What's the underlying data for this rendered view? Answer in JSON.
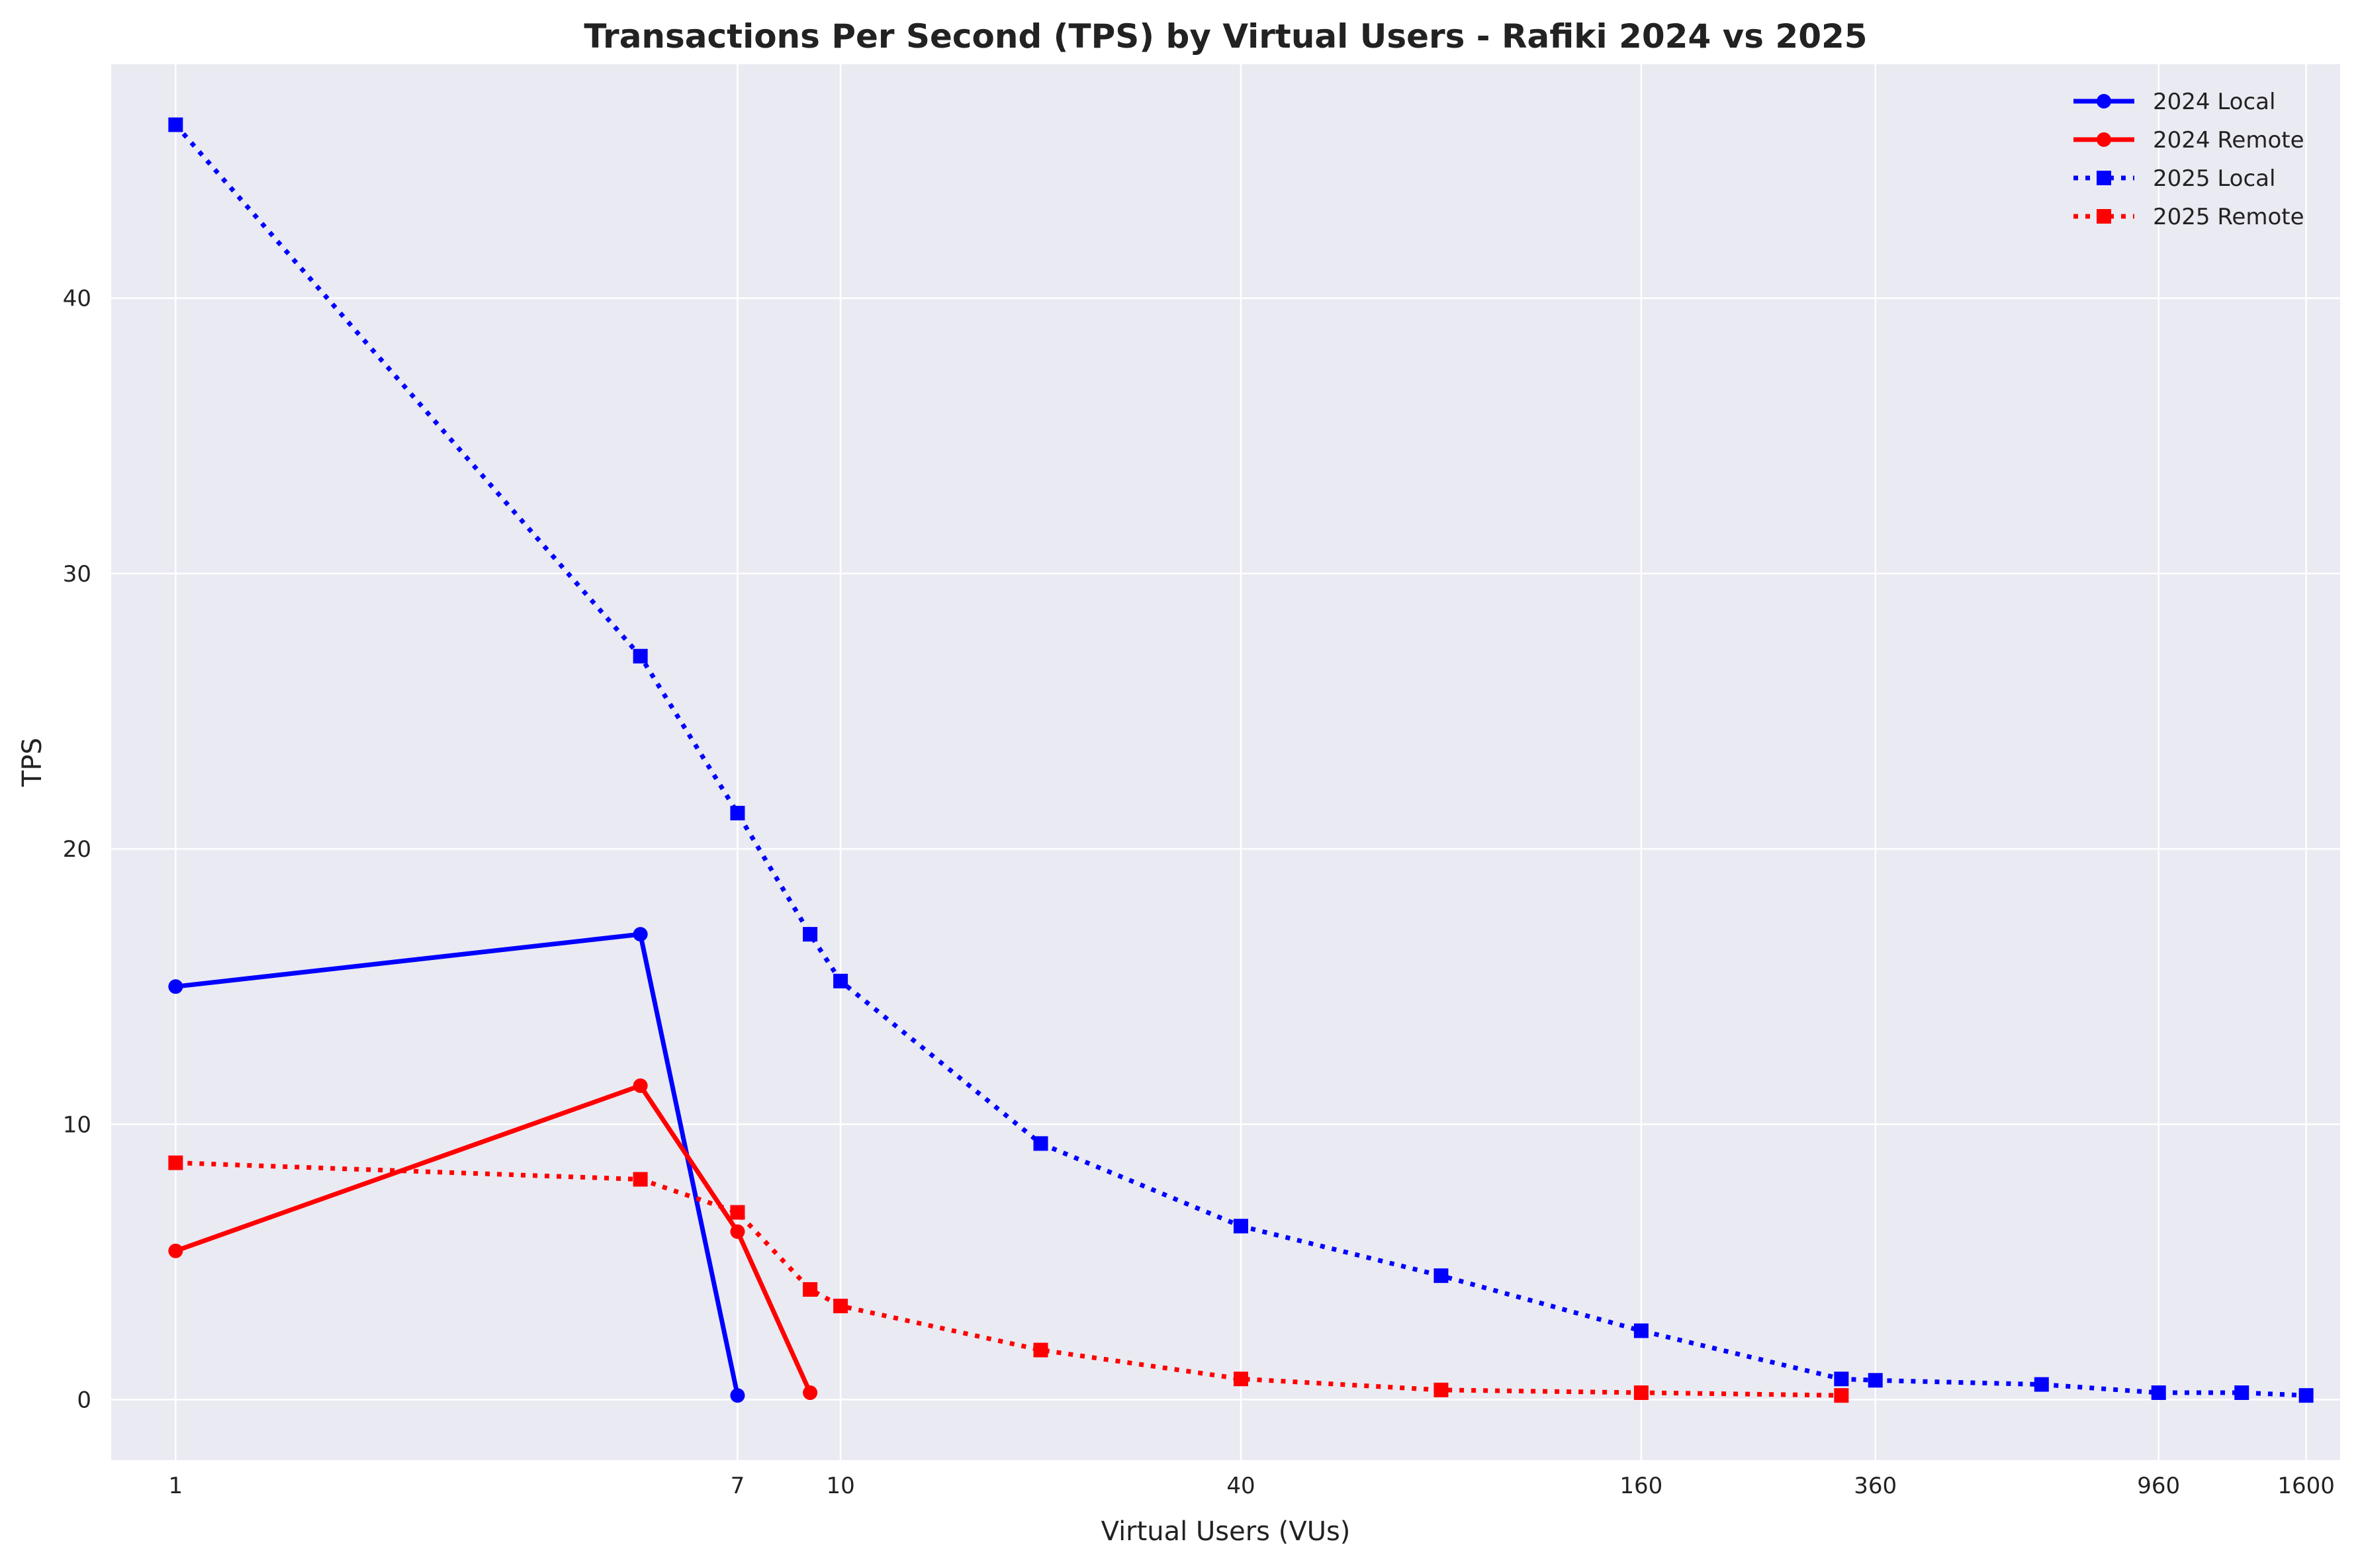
{
  "chart_data": {
    "type": "line",
    "title": "Transactions Per Second (TPS) by Virtual Users - Rafiki 2024 vs 2025",
    "xlabel": "Virtual Users (VUs)",
    "ylabel": "TPS",
    "x_scale": "log",
    "xlim": [
      0.8,
      1800
    ],
    "ylim": [
      -2.2,
      48.5
    ],
    "x_ticks": [
      1,
      7,
      10,
      40,
      160,
      360,
      960,
      1600
    ],
    "y_ticks": [
      0,
      10,
      20,
      30,
      40
    ],
    "grid": true,
    "legend_position": "top-right",
    "series": [
      {
        "name": "2024 Local",
        "color": "#0000ff",
        "line_style": "solid",
        "marker": "circle",
        "points": [
          [
            1,
            15.0
          ],
          [
            5,
            16.9
          ],
          [
            7,
            0.15
          ]
        ]
      },
      {
        "name": "2024 Remote",
        "color": "#ff0000",
        "line_style": "solid",
        "marker": "circle",
        "points": [
          [
            1,
            5.4
          ],
          [
            5,
            11.4
          ],
          [
            7,
            6.1
          ],
          [
            9,
            0.25
          ]
        ]
      },
      {
        "name": "2025 Local",
        "color": "#0000ff",
        "line_style": "dotted",
        "marker": "square",
        "points": [
          [
            1,
            46.3
          ],
          [
            5,
            27.0
          ],
          [
            7,
            21.3
          ],
          [
            9,
            16.9
          ],
          [
            10,
            15.2
          ],
          [
            20,
            9.3
          ],
          [
            40,
            6.3
          ],
          [
            80,
            4.5
          ],
          [
            160,
            2.5
          ],
          [
            320,
            0.75
          ],
          [
            360,
            0.7
          ],
          [
            640,
            0.55
          ],
          [
            960,
            0.25
          ],
          [
            1280,
            0.25
          ],
          [
            1600,
            0.15
          ]
        ]
      },
      {
        "name": "2025 Remote",
        "color": "#ff0000",
        "line_style": "dotted",
        "marker": "square",
        "points": [
          [
            1,
            8.6
          ],
          [
            5,
            8.0
          ],
          [
            7,
            6.8
          ],
          [
            9,
            4.0
          ],
          [
            10,
            3.4
          ],
          [
            20,
            1.8
          ],
          [
            40,
            0.75
          ],
          [
            80,
            0.35
          ],
          [
            160,
            0.25
          ],
          [
            320,
            0.15
          ]
        ]
      }
    ]
  }
}
